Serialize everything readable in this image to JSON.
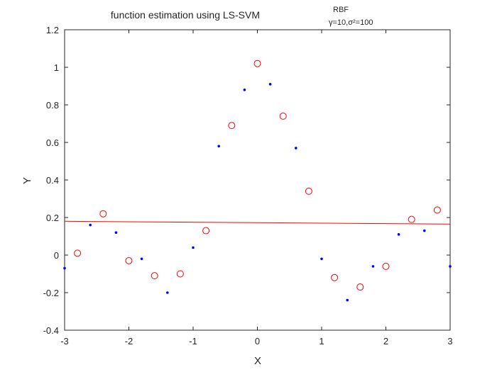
{
  "chart_data": {
    "type": "scatter",
    "title": "function estimation using  LS-SVM",
    "title_superscript": "RBF",
    "title_subscript": "γ=10,σ²=100",
    "xlabel": "X",
    "ylabel": "Y",
    "xlim": [
      -3,
      3
    ],
    "ylim": [
      -0.4,
      1.2
    ],
    "xticks": [
      -3,
      -2,
      -1,
      0,
      1,
      2,
      3
    ],
    "yticks": [
      -0.4,
      -0.2,
      0,
      0.2,
      0.4,
      0.6,
      0.8,
      1,
      1.2
    ],
    "xtick_labels": [
      "-3",
      "-2",
      "-1",
      "0",
      "1",
      "2",
      "3"
    ],
    "ytick_labels": [
      "-0.4",
      "-0.2",
      "0",
      "0.2",
      "0.4",
      "0.6",
      "0.8",
      "1",
      "1.2"
    ],
    "grid": false,
    "series": [
      {
        "marker": "dot",
        "color": "#0000ff",
        "x": [
          -3.0,
          -2.6,
          -2.2,
          -1.8,
          -1.4,
          -1.0,
          -0.6,
          -0.2,
          0.2,
          0.6,
          1.0,
          1.4,
          1.8,
          2.2,
          2.6,
          3.0
        ],
        "y": [
          -0.07,
          0.16,
          0.12,
          -0.02,
          -0.2,
          0.04,
          0.58,
          0.88,
          0.91,
          0.57,
          -0.02,
          -0.24,
          -0.06,
          0.11,
          0.13,
          -0.06
        ]
      },
      {
        "marker": "circle",
        "color": "#ff0000",
        "x": [
          -2.8,
          -2.4,
          -2.0,
          -1.6,
          -1.2,
          -0.8,
          -0.4,
          0.0,
          0.4,
          0.8,
          1.2,
          1.6,
          2.0,
          2.4,
          2.8
        ],
        "y": [
          0.01,
          0.22,
          -0.03,
          -0.11,
          -0.1,
          0.13,
          0.69,
          1.02,
          0.74,
          0.34,
          -0.12,
          -0.17,
          -0.06,
          0.19,
          0.24
        ]
      },
      {
        "marker": "line",
        "color": "#ff0000",
        "x": [
          -3.0,
          3.0
        ],
        "y": [
          0.18,
          0.165
        ]
      }
    ]
  }
}
